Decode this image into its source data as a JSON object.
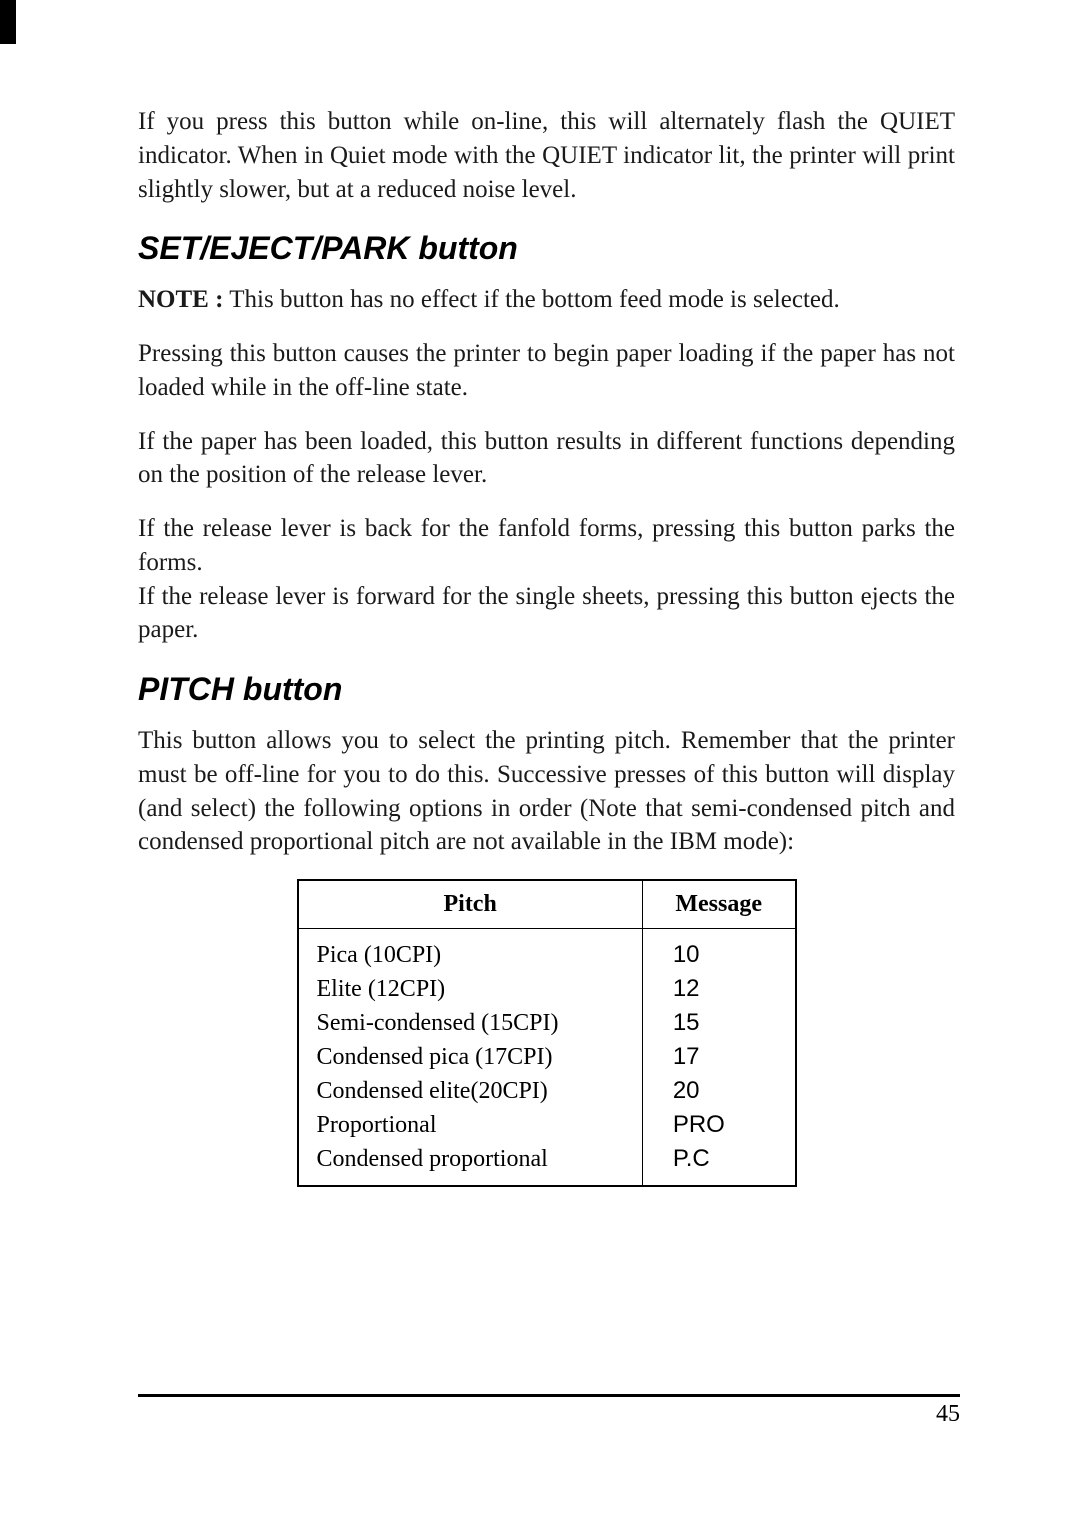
{
  "intro_paragraph": "If you press this button while on-line, this will alternately flash the QUIET indicator. When in Quiet mode with the QUIET indicator lit, the printer will print slightly slower, but at a reduced noise level.",
  "section1": {
    "heading": "SET/EJECT/PARK button",
    "note_label": "NOTE :",
    "note_text": "This button has no effect if the bottom feed mode is selected.",
    "p1": "Pressing this button causes the printer to begin paper loading if the paper has not loaded while in the off-line state.",
    "p2": "If the paper has been loaded, this button results in different functions depending on the position of the release lever.",
    "p3a": "If the release lever is back for the fanfold forms, pressing this button parks the forms.",
    "p3b": "If the release lever is forward for the single sheets, pressing this button ejects the paper."
  },
  "section2": {
    "heading": "PITCH button",
    "p1": "This button allows you to select the printing pitch. Remember that the printer must be off-line for you to do this. Successive presses of this button will display (and select) the following options in order (Note that semi-condensed pitch and condensed proportional pitch are not available in the IBM mode):",
    "table": {
      "col1_header": "Pitch",
      "col2_header": "Message",
      "rows": [
        {
          "pitch": "Pica (10CPI)",
          "msg": "10"
        },
        {
          "pitch": "Elite (12CPI)",
          "msg": "12"
        },
        {
          "pitch": "Semi-condensed (15CPI)",
          "msg": "15"
        },
        {
          "pitch": "Condensed pica (17CPI)",
          "msg": "17"
        },
        {
          "pitch": "Condensed elite(20CPI)",
          "msg": "20"
        },
        {
          "pitch": "Proportional",
          "msg": "PRO"
        },
        {
          "pitch": "Condensed proportional",
          "msg": "P.C"
        }
      ]
    }
  },
  "page_number": "45",
  "colors": {
    "text": "#000000",
    "background": "#ffffff",
    "rule": "#000000"
  },
  "typography": {
    "body_family": "Times New Roman",
    "body_size_pt": 19,
    "heading_family": "Arial",
    "heading_size_pt": 24,
    "heading_weight": "bold",
    "heading_style": "italic"
  }
}
